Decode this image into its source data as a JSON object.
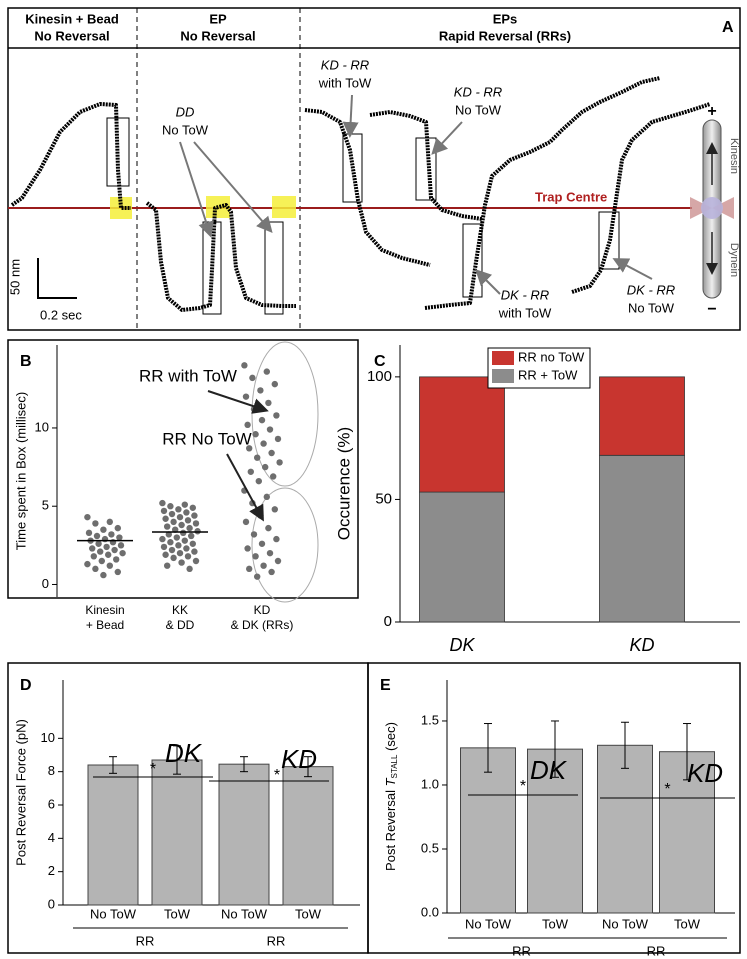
{
  "panel_a": {
    "label": "A",
    "headers": [
      [
        "Kinesin + Bead",
        "No Reversal"
      ],
      [
        "EP",
        "No Reversal"
      ],
      [
        "EPs",
        "Rapid Reversal (RRs)"
      ]
    ],
    "annotations": [
      [
        "DD",
        "No ToW"
      ],
      [
        "KD - RR",
        "with ToW"
      ],
      [
        "KD - RR",
        "No ToW"
      ],
      [
        "DK - RR",
        "with ToW"
      ],
      [
        "DK - RR",
        "No ToW"
      ]
    ],
    "trap_label": "Trap Centre",
    "scale_bar": [
      "50 nm",
      "0.2 sec"
    ],
    "icon": {
      "plus": "+",
      "minus": "−",
      "top": "Kinesin",
      "bottom": "Dynein"
    }
  },
  "chart_data": [
    {
      "type": "strip",
      "panel_label": "B",
      "y_label": "Time spent in Box (millisec)",
      "categories": [
        [
          "Kinesin",
          "+ Bead"
        ],
        [
          "KK",
          "& DD"
        ],
        [
          "KD",
          "& DK (RRs)"
        ]
      ],
      "values": [
        [
          4.3,
          4.0,
          3.9,
          3.6,
          3.5,
          3.3,
          3.2,
          3.1,
          3.0,
          2.9,
          2.8,
          2.7,
          2.6,
          2.5,
          2.4,
          2.3,
          2.2,
          2.1,
          2.0,
          1.9,
          1.8,
          1.6,
          1.5,
          1.3,
          1.2,
          1.0,
          0.8,
          0.6
        ],
        [
          5.2,
          5.1,
          5.0,
          4.9,
          4.8,
          4.7,
          4.6,
          4.5,
          4.4,
          4.3,
          4.2,
          4.1,
          4.0,
          3.9,
          3.8,
          3.7,
          3.6,
          3.5,
          3.4,
          3.3,
          3.2,
          3.1,
          3.0,
          2.9,
          2.8,
          2.7,
          2.6,
          2.5,
          2.4,
          2.3,
          2.2,
          2.1,
          2.0,
          1.9,
          1.8,
          1.7,
          1.5,
          1.4,
          1.2,
          1.0
        ],
        [
          14.0,
          13.6,
          13.2,
          12.8,
          12.4,
          12.0,
          11.6,
          11.2,
          10.8,
          10.5,
          10.2,
          9.9,
          9.6,
          9.3,
          9.0,
          8.7,
          8.4,
          8.1,
          7.8,
          7.5,
          7.2,
          6.9,
          6.6,
          6.0,
          5.6,
          5.2,
          4.8,
          4.4,
          4.0,
          3.6,
          3.2,
          2.9,
          2.6,
          2.3,
          2.0,
          1.8,
          1.5,
          1.2,
          1.0,
          0.8,
          0.5
        ]
      ],
      "mean_lines": [
        2.8,
        3.35
      ],
      "annotations": [
        "RR with ToW",
        "RR No ToW"
      ],
      "color": "#6e6e6e",
      "ylim": [
        -0.8,
        15.3
      ],
      "yticks": [
        0,
        5,
        10
      ]
    },
    {
      "type": "stacked_bar",
      "panel_label": "C",
      "y_label": "Occurence (%)",
      "categories": [
        "DK",
        "KD"
      ],
      "series": [
        {
          "name": "RR + ToW",
          "color": "#8c8c8c",
          "values": [
            53,
            68
          ]
        },
        {
          "name": "RR no ToW",
          "color": "#c8352f",
          "values": [
            47,
            32
          ]
        }
      ],
      "ylim": [
        0,
        113
      ],
      "yticks": [
        0,
        50,
        100
      ]
    },
    {
      "type": "errorbar_bar",
      "panel_label": "D",
      "y_label": "Post Reversal Force (pN)",
      "categories": [
        "No ToW",
        "ToW",
        "No ToW",
        "ToW"
      ],
      "values": [
        8.4,
        8.7,
        8.45,
        8.3
      ],
      "errors": [
        0.5,
        0.85,
        0.45,
        0.6
      ],
      "groups": [
        "RR",
        "RR"
      ],
      "annotations": [
        "*",
        "*",
        "DK",
        "KD"
      ],
      "color": "#b4b4b4",
      "ylim": [
        0,
        13.5
      ],
      "yticks": [
        0,
        2,
        4,
        6,
        8,
        10
      ]
    },
    {
      "type": "errorbar_bar",
      "panel_label": "E",
      "y_label": [
        "Post Reversal ",
        "T",
        "STALL",
        " (sec)"
      ],
      "categories": [
        "No ToW",
        "ToW",
        "No ToW",
        "ToW"
      ],
      "values": [
        1.29,
        1.28,
        1.31,
        1.26
      ],
      "errors": [
        0.19,
        0.22,
        0.18,
        0.22
      ],
      "groups": [
        "RR",
        "RR"
      ],
      "annotations": [
        "*",
        "*",
        "DK",
        "KD"
      ],
      "color": "#b4b4b4",
      "ylim": [
        0,
        1.82
      ],
      "yticks": [
        {
          "value": 0,
          "label": "0.0"
        },
        0.5,
        {
          "value": 1,
          "label": "1.0"
        },
        1.5
      ]
    }
  ]
}
